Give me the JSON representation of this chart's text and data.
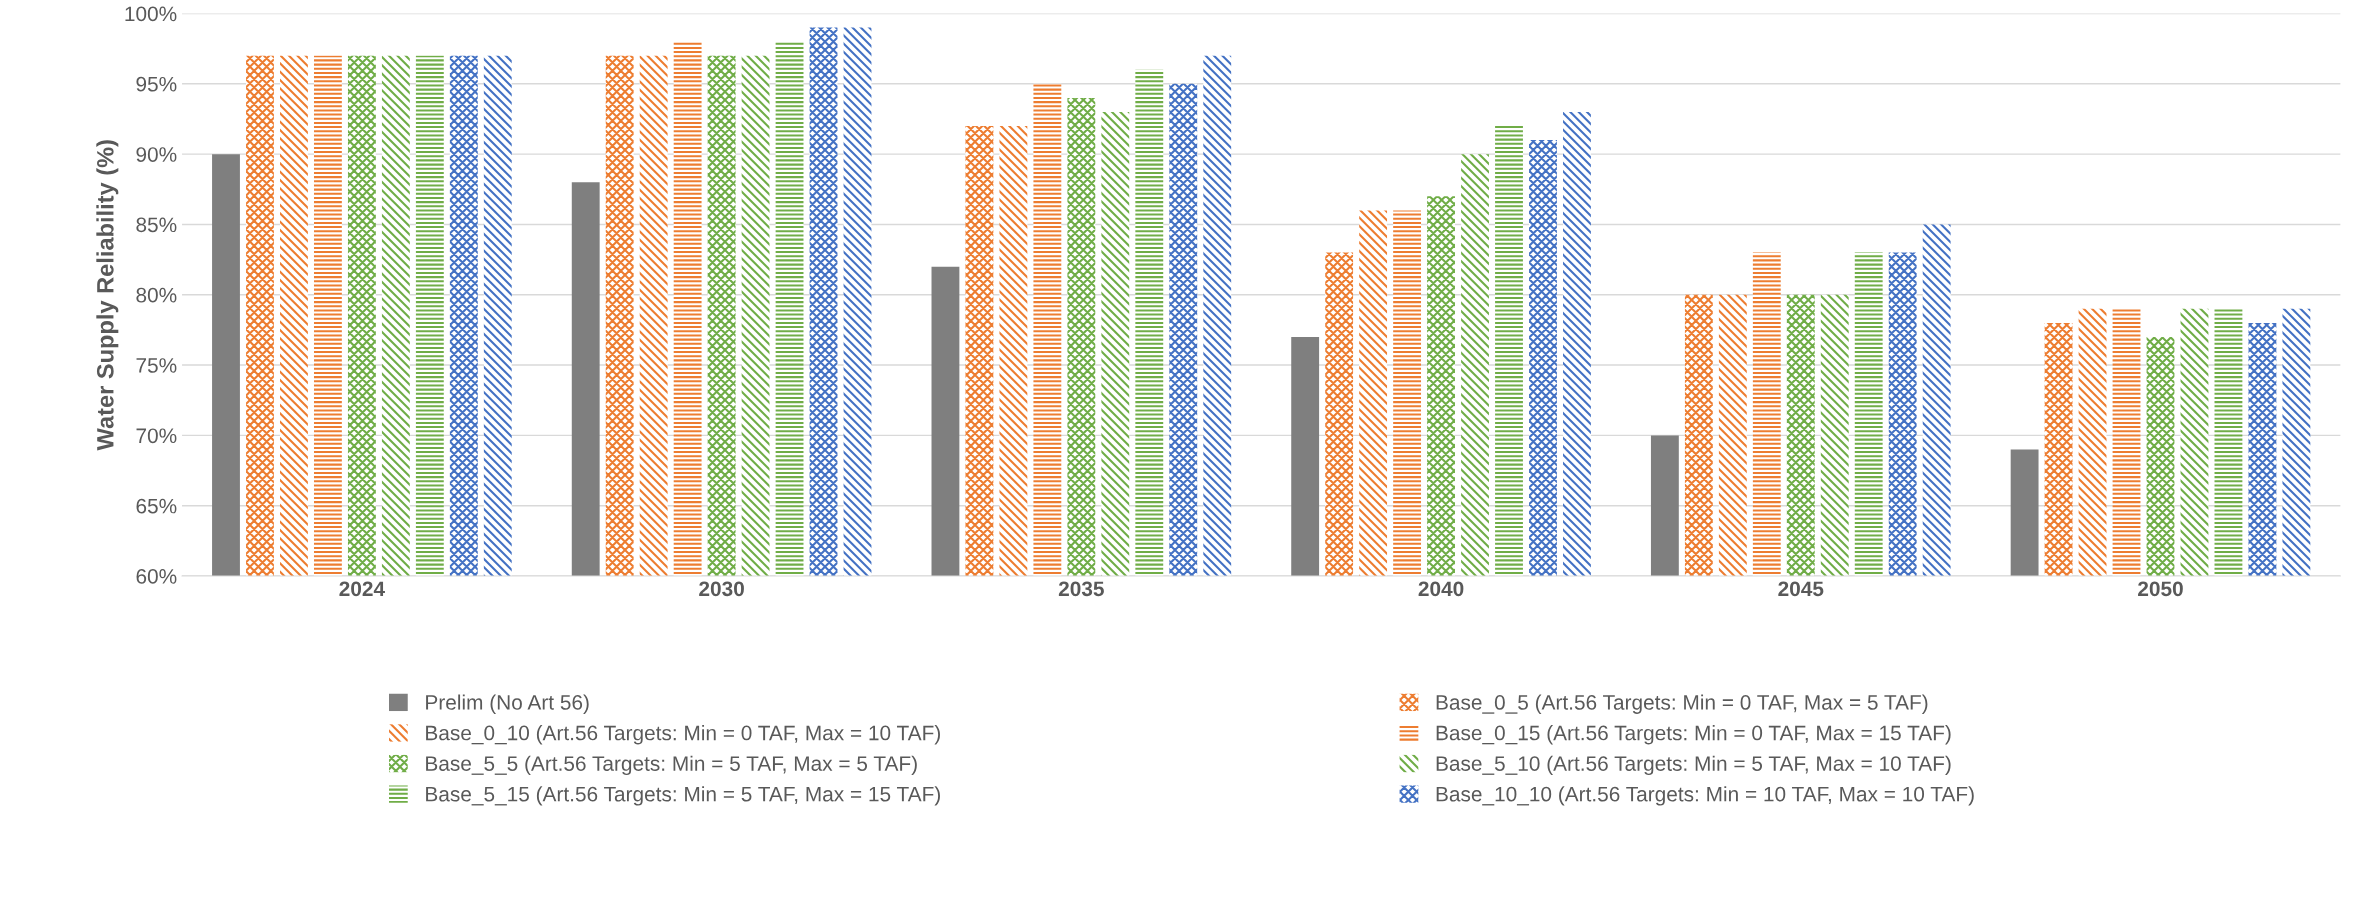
{
  "chart_data": {
    "type": "bar",
    "ylabel": "Water Supply Reliability (%)",
    "categories": [
      "2024",
      "2030",
      "2035",
      "2040",
      "2045",
      "2050"
    ],
    "series": [
      {
        "name": "Prelim (No Art 56)",
        "color": "#7f7f7f",
        "values": [
          90,
          88,
          82,
          77,
          70,
          69
        ]
      },
      {
        "name": "Base_0_5 (Art.56 Targets: Min = 0 TAF, Max = 5 TAF)",
        "color": "#ed7d31",
        "values": [
          97,
          97,
          92,
          83,
          80,
          78
        ]
      },
      {
        "name": "Base_0_10 (Art.56 Targets: Min = 0 TAF, Max = 10 TAF)",
        "color": "#ed7d31",
        "values": [
          97,
          97,
          92,
          86,
          80,
          79
        ]
      },
      {
        "name": "Base_0_15 (Art.56 Targets: Min = 0 TAF, Max = 15 TAF)",
        "color": "#ed7d31",
        "values": [
          97,
          98,
          95,
          86,
          83,
          79
        ]
      },
      {
        "name": "Base_5_5 (Art.56 Targets: Min = 5 TAF, Max = 5 TAF)",
        "color": "#70ad47",
        "values": [
          97,
          97,
          94,
          87,
          80,
          77
        ]
      },
      {
        "name": "Base_5_10 (Art.56 Targets: Min = 5 TAF, Max = 10 TAF)",
        "color": "#70ad47",
        "values": [
          97,
          97,
          93,
          90,
          80,
          79
        ]
      },
      {
        "name": "Base_5_15 (Art.56 Targets: Min = 5 TAF, Max = 15 TAF)",
        "color": "#70ad47",
        "values": [
          97,
          98,
          96,
          92,
          83,
          79
        ]
      },
      {
        "name": "Base_10_10 (Art.56 Targets: Min = 10 TAF, Max = 10 TAF)",
        "color": "#4472c4",
        "values": [
          97,
          99,
          95,
          91,
          83,
          78
        ]
      },
      {
        "color": "#4472c4",
        "values": [
          97,
          99,
          97,
          93,
          85,
          79
        ]
      }
    ],
    "ylim": [
      60,
      100
    ],
    "yticks": [
      {
        "value": 60,
        "label": "60%"
      },
      {
        "value": 65,
        "label": "65%"
      },
      {
        "value": 70,
        "label": "70%"
      },
      {
        "value": 75,
        "label": "75%"
      },
      {
        "value": 80,
        "label": "80%"
      },
      {
        "value": 85,
        "label": "85%"
      },
      {
        "value": 90,
        "label": "90%"
      },
      {
        "value": 95,
        "label": "95%"
      },
      {
        "value": 100,
        "label": "100%"
      }
    ],
    "grid": "y",
    "legend": "bottom"
  }
}
